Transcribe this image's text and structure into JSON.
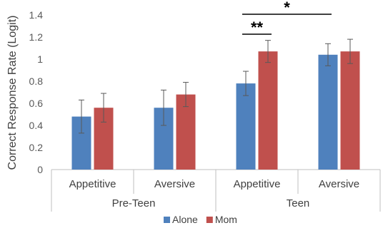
{
  "chart_data": {
    "type": "bar",
    "ylabel": "Correct Response Rate (Logit)",
    "xlabel": "",
    "ylim": [
      0,
      1.4
    ],
    "yticks": [
      0,
      0.2,
      0.4,
      0.6,
      0.8,
      1.0,
      1.2,
      1.4
    ],
    "ytick_labels": [
      "0",
      "0.2",
      "0.4",
      "0.6",
      "0.8",
      "1",
      "1.2",
      "1.4"
    ],
    "grid": false,
    "legend_position": "bottom",
    "groups": [
      {
        "label": "Pre-Teen",
        "categories": [
          "Appetitive",
          "Aversive"
        ]
      },
      {
        "label": "Teen",
        "categories": [
          "Appetitive",
          "Aversive"
        ]
      }
    ],
    "categories": [
      "Appetitive",
      "Aversive",
      "Appetitive",
      "Aversive"
    ],
    "series": [
      {
        "name": "Alone",
        "color": "#4f81bd",
        "values": [
          0.48,
          0.56,
          0.78,
          1.04
        ],
        "error": [
          0.15,
          0.16,
          0.11,
          0.1
        ]
      },
      {
        "name": "Mom",
        "color": "#c0504d",
        "values": [
          0.56,
          0.68,
          1.07,
          1.07
        ],
        "error": [
          0.13,
          0.11,
          0.1,
          0.11
        ]
      }
    ],
    "significance": [
      {
        "label": "**",
        "from": {
          "category": 2,
          "series": 0
        },
        "to": {
          "category": 2,
          "series": 1
        }
      },
      {
        "label": "*",
        "from": {
          "category": 2,
          "series": 0
        },
        "to": {
          "category": 3,
          "series": 0
        }
      }
    ]
  }
}
